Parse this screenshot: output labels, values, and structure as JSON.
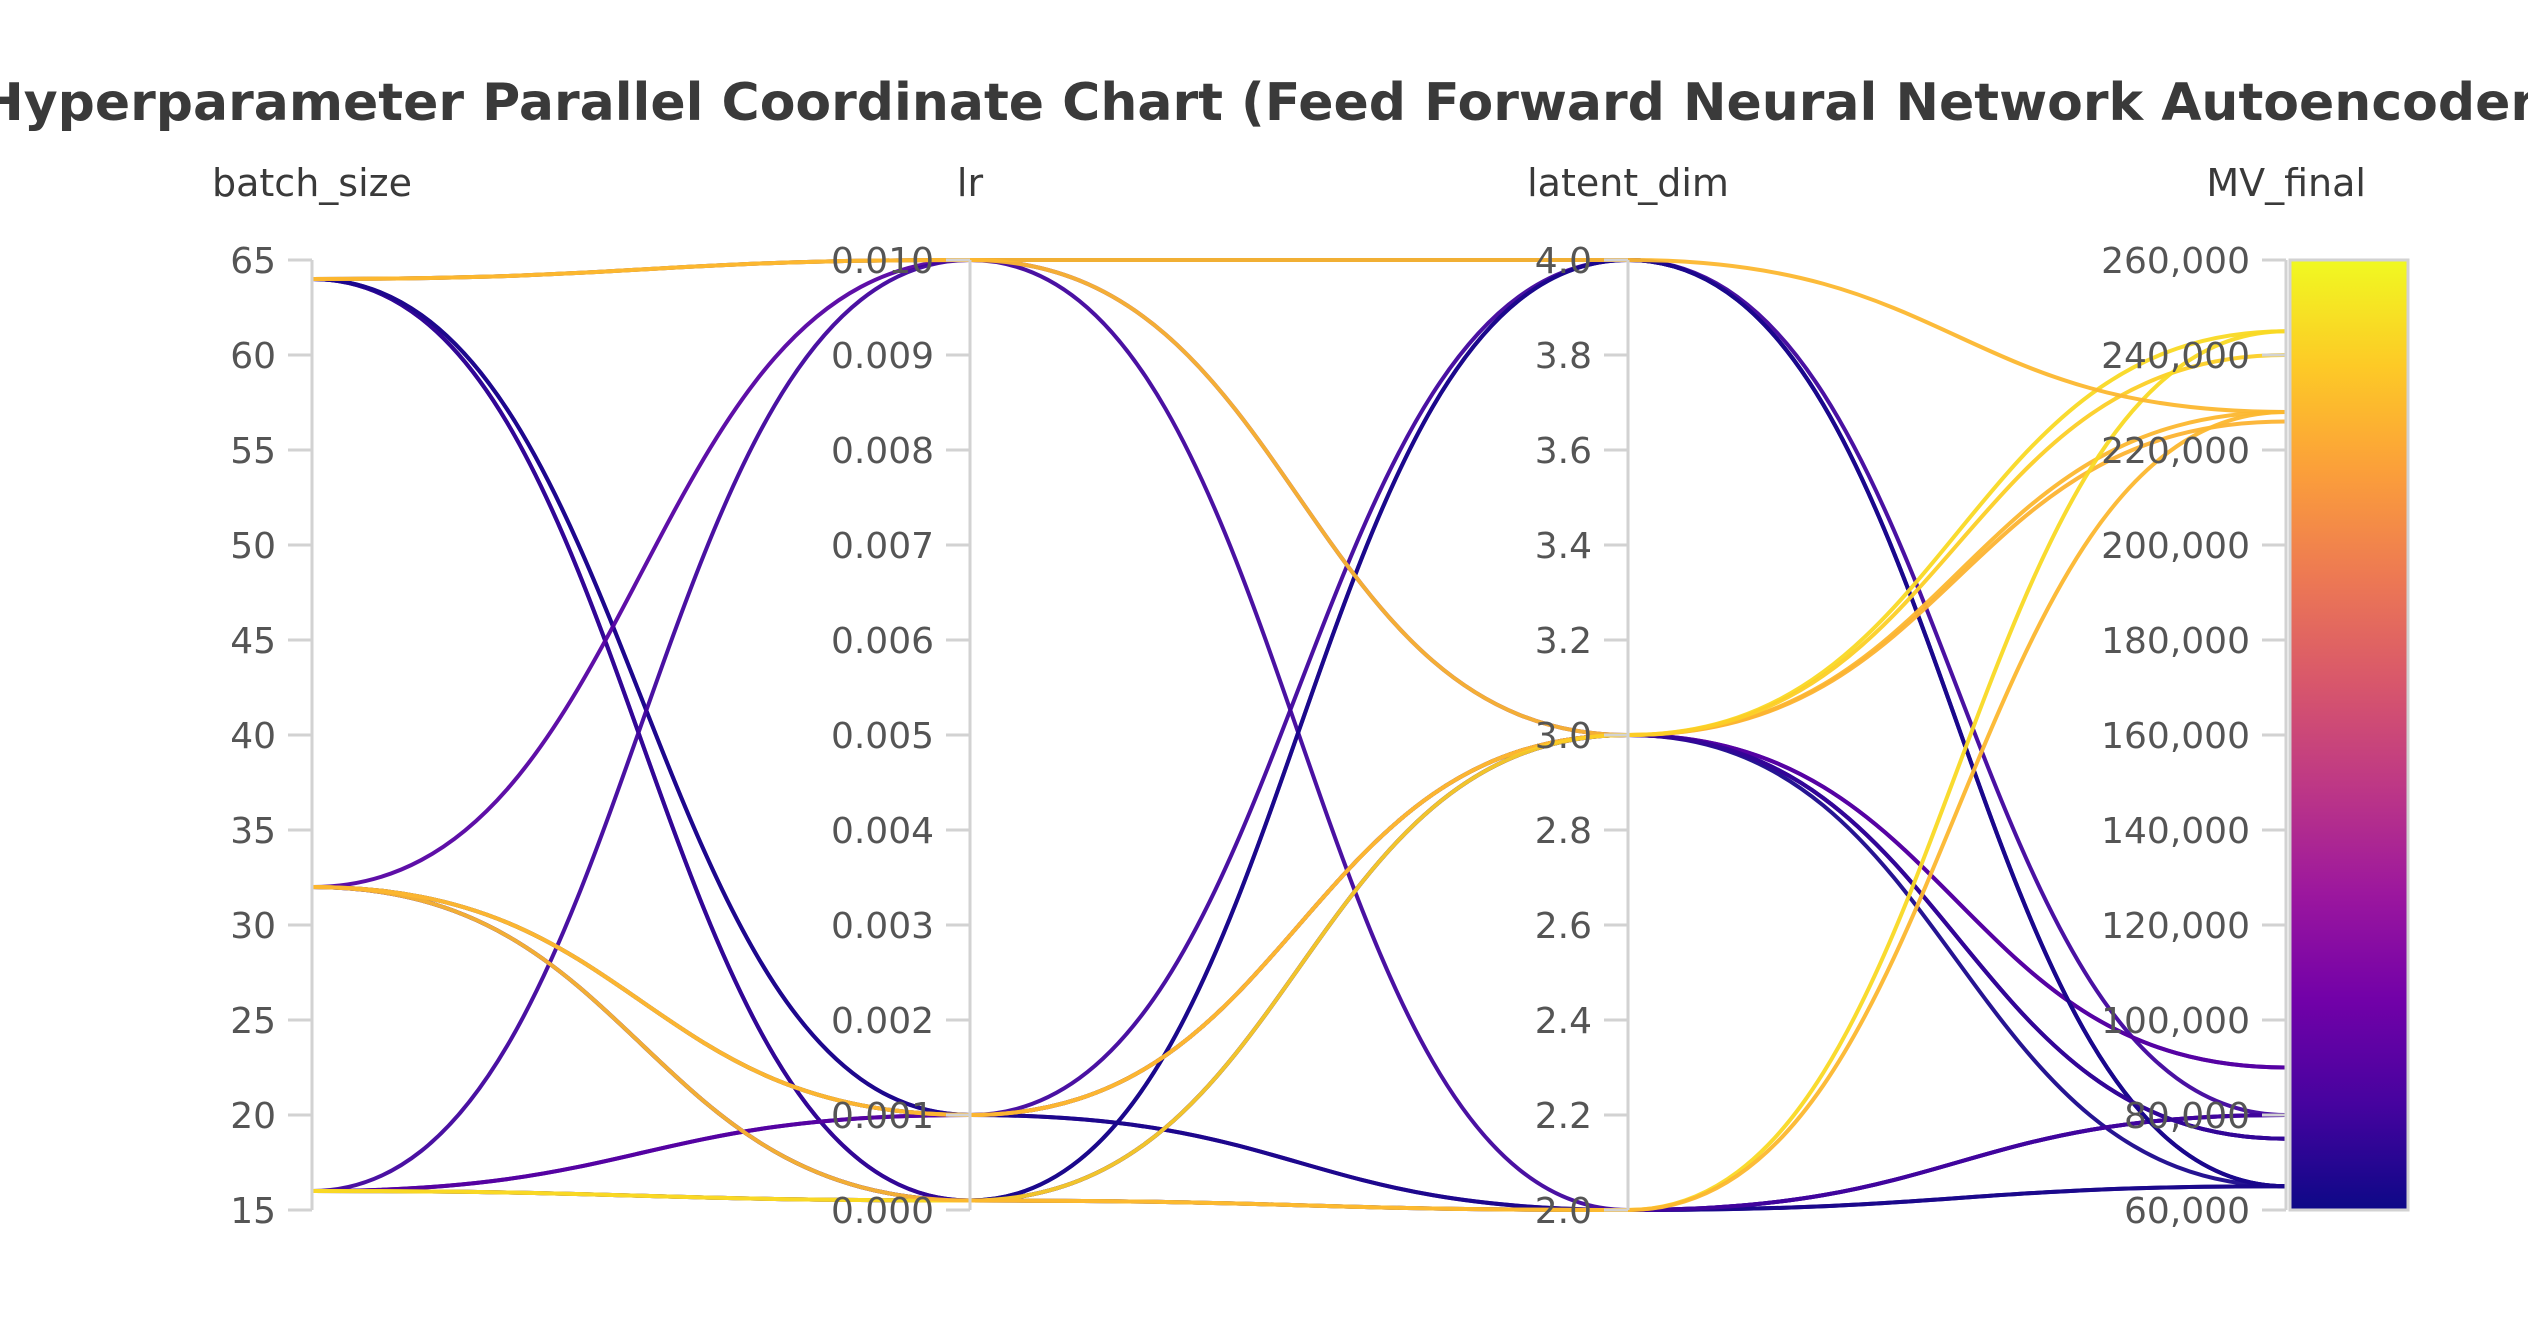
{
  "chart_data": {
    "type": "parallel_coordinates",
    "title": "Hyperparameter Parallel Coordinate Chart (Feed Forward Neural Network Autoencoder)",
    "dimensions": [
      {
        "name": "batch_size",
        "range": [
          15,
          65
        ],
        "ticks": [
          15,
          20,
          25,
          30,
          35,
          40,
          45,
          50,
          55,
          60,
          65
        ],
        "tick_labels": [
          "15",
          "20",
          "25",
          "30",
          "35",
          "40",
          "45",
          "50",
          "55",
          "60",
          "65"
        ]
      },
      {
        "name": "lr",
        "range": [
          0.0,
          0.01
        ],
        "ticks": [
          0.0,
          0.001,
          0.002,
          0.003,
          0.004,
          0.005,
          0.006,
          0.007,
          0.008,
          0.009,
          0.01
        ],
        "tick_labels": [
          "0.000",
          "0.001",
          "0.002",
          "0.003",
          "0.004",
          "0.005",
          "0.006",
          "0.007",
          "0.008",
          "0.009",
          "0.010"
        ]
      },
      {
        "name": "latent_dim",
        "range": [
          2.0,
          4.0
        ],
        "ticks": [
          2.0,
          2.2,
          2.4,
          2.6,
          2.8,
          3.0,
          3.2,
          3.4,
          3.6,
          3.8,
          4.0
        ],
        "tick_labels": [
          "2.0",
          "2.2",
          "2.4",
          "2.6",
          "2.8",
          "3.0",
          "3.2",
          "3.4",
          "3.6",
          "3.8",
          "4.0"
        ]
      },
      {
        "name": "MV_final",
        "range": [
          60000,
          260000
        ],
        "ticks": [
          60000,
          80000,
          100000,
          120000,
          140000,
          160000,
          180000,
          200000,
          220000,
          240000,
          260000
        ],
        "tick_labels": [
          "60,000",
          "80,000",
          "100,000",
          "120,000",
          "140,000",
          "160,000",
          "180,000",
          "200,000",
          "220,000",
          "240,000",
          "260,000"
        ]
      }
    ],
    "colorscale": {
      "name": "plasma",
      "range": [
        60000,
        260000
      ],
      "stops": [
        "#0d0887",
        "#46039f",
        "#7201a8",
        "#9c179e",
        "#bd3786",
        "#d8576b",
        "#ed7953",
        "#fb9f3a",
        "#fdca26",
        "#f0f921"
      ]
    },
    "runs": [
      {
        "batch_size": 64,
        "lr": 0.01,
        "latent_dim": 4,
        "MV_final": 65000
      },
      {
        "batch_size": 64,
        "lr": 0.0001,
        "latent_dim": 2,
        "MV_final": 65000
      },
      {
        "batch_size": 64,
        "lr": 0.0001,
        "latent_dim": 3,
        "MV_final": 75000
      },
      {
        "batch_size": 64,
        "lr": 0.001,
        "latent_dim": 2,
        "MV_final": 80000
      },
      {
        "batch_size": 64,
        "lr": 0.001,
        "latent_dim": 3,
        "MV_final": 65000
      },
      {
        "batch_size": 32,
        "lr": 0.01,
        "latent_dim": 3,
        "MV_final": 90000
      },
      {
        "batch_size": 32,
        "lr": 0.0001,
        "latent_dim": 4,
        "MV_final": 65000
      },
      {
        "batch_size": 32,
        "lr": 0.001,
        "latent_dim": 3,
        "MV_final": 75000
      },
      {
        "batch_size": 32,
        "lr": 0.001,
        "latent_dim": 2,
        "MV_final": 65000
      },
      {
        "batch_size": 32,
        "lr": 0.0001,
        "latent_dim": 2,
        "MV_final": 80000
      },
      {
        "batch_size": 16,
        "lr": 0.01,
        "latent_dim": 2,
        "MV_final": 80000
      },
      {
        "batch_size": 16,
        "lr": 0.001,
        "latent_dim": 4,
        "MV_final": 80000
      },
      {
        "batch_size": 16,
        "lr": 0.001,
        "latent_dim": 3,
        "MV_final": 90000
      },
      {
        "batch_size": 16,
        "lr": 0.0001,
        "latent_dim": 4,
        "MV_final": 65000
      },
      {
        "batch_size": 16,
        "lr": 0.0001,
        "latent_dim": 3,
        "MV_final": 75000
      },
      {
        "batch_size": 64,
        "lr": 0.01,
        "latent_dim": 3,
        "MV_final": 228000
      },
      {
        "batch_size": 32,
        "lr": 0.001,
        "latent_dim": 3,
        "MV_final": 245000
      },
      {
        "batch_size": 32,
        "lr": 0.001,
        "latent_dim": 3,
        "MV_final": 226000
      },
      {
        "batch_size": 16,
        "lr": 0.0001,
        "latent_dim": 3,
        "MV_final": 240000
      },
      {
        "batch_size": 16,
        "lr": 0.0001,
        "latent_dim": 2,
        "MV_final": 245000
      },
      {
        "batch_size": 64,
        "lr": 0.01,
        "latent_dim": 4,
        "MV_final": 228000
      },
      {
        "batch_size": 32,
        "lr": 0.0001,
        "latent_dim": 2,
        "MV_final": 228000
      }
    ]
  }
}
